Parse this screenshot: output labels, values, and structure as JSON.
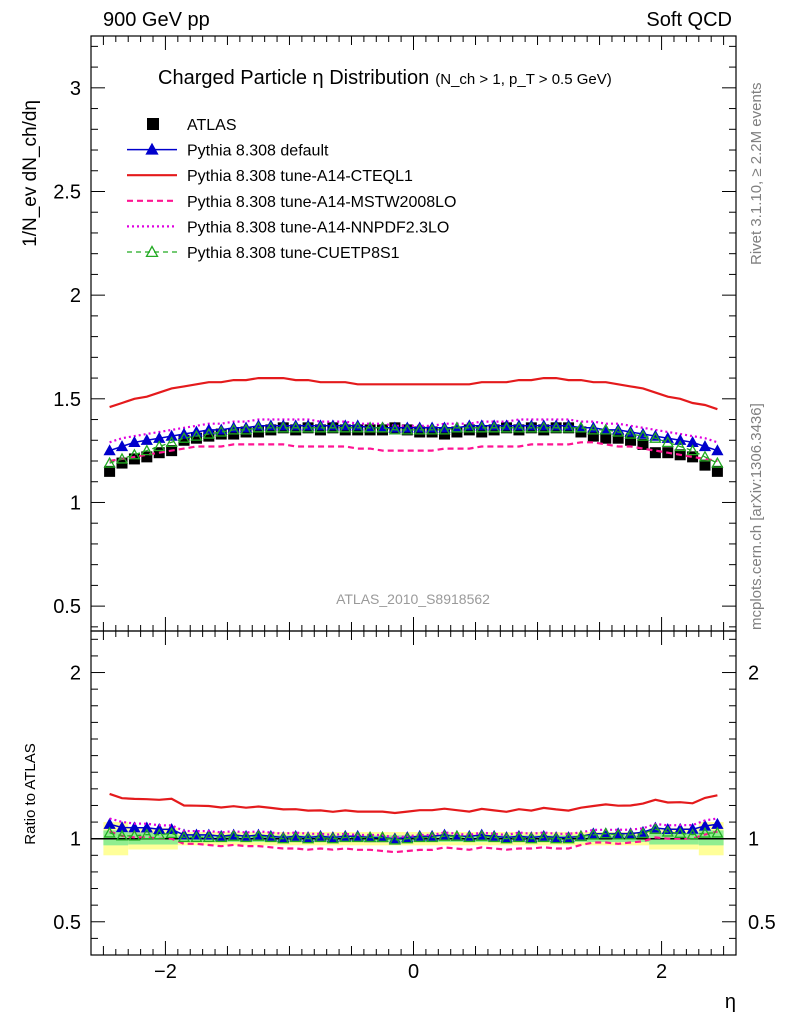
{
  "header": {
    "left": "900 GeV pp",
    "right": "Soft QCD"
  },
  "side": {
    "rivet": "Rivet 3.1.10, ≥ 2.2M events",
    "mcplots": "mcplots.cern.ch [arXiv:1306.3436]"
  },
  "colors": {
    "atlas": "#000000",
    "default": "#0000cc",
    "cteql1": "#e41a1c",
    "mstw": "#ff1493",
    "nnpdf": "#e000e0",
    "cuetp8s1": "#22aa22",
    "band_inner": "#90ee90",
    "band_outer": "#ffff99"
  },
  "chart_data": [
    {
      "type": "line",
      "title": "Charged Particle η Distribution",
      "title_sub": "(N_ch > 1, p_T > 0.5 GeV)",
      "ylabel": "1/N_ev dN_ch/dη",
      "xlabel": "",
      "xlim": [
        -2.6,
        2.6
      ],
      "ylim": [
        0.38,
        3.25
      ],
      "yticks": [
        0.5,
        1,
        1.5,
        2,
        2.5,
        3
      ],
      "ytick_labels": [
        "0.5",
        "1",
        "1.5",
        "2",
        "2.5",
        "3"
      ],
      "analysis_label": "ATLAS_2010_S8918562",
      "legend": "top-left",
      "x": [
        -2.45,
        -2.35,
        -2.25,
        -2.15,
        -2.05,
        -1.95,
        -1.85,
        -1.75,
        -1.65,
        -1.55,
        -1.45,
        -1.35,
        -1.25,
        -1.15,
        -1.05,
        -0.95,
        -0.85,
        -0.75,
        -0.65,
        -0.55,
        -0.45,
        -0.35,
        -0.25,
        -0.15,
        -0.05,
        0.05,
        0.15,
        0.25,
        0.35,
        0.45,
        0.55,
        0.65,
        0.75,
        0.85,
        0.95,
        1.05,
        1.15,
        1.25,
        1.35,
        1.45,
        1.55,
        1.65,
        1.75,
        1.85,
        1.95,
        2.05,
        2.15,
        2.25,
        2.35,
        2.45
      ],
      "series": [
        {
          "name": "ATLAS",
          "key": "atlas",
          "style": "square",
          "values": [
            1.15,
            1.19,
            1.21,
            1.22,
            1.24,
            1.25,
            1.3,
            1.31,
            1.32,
            1.33,
            1.33,
            1.34,
            1.34,
            1.35,
            1.36,
            1.35,
            1.36,
            1.35,
            1.36,
            1.35,
            1.35,
            1.35,
            1.35,
            1.36,
            1.35,
            1.34,
            1.34,
            1.33,
            1.34,
            1.35,
            1.34,
            1.35,
            1.36,
            1.35,
            1.36,
            1.35,
            1.36,
            1.36,
            1.34,
            1.32,
            1.31,
            1.31,
            1.3,
            1.28,
            1.24,
            1.24,
            1.23,
            1.22,
            1.18,
            1.15
          ]
        },
        {
          "name": "Pythia 8.308 default",
          "key": "default",
          "style": "solid-triangle",
          "values": [
            1.25,
            1.27,
            1.29,
            1.3,
            1.31,
            1.32,
            1.33,
            1.34,
            1.35,
            1.35,
            1.36,
            1.36,
            1.37,
            1.37,
            1.37,
            1.37,
            1.37,
            1.37,
            1.37,
            1.37,
            1.37,
            1.36,
            1.36,
            1.36,
            1.36,
            1.36,
            1.36,
            1.36,
            1.36,
            1.37,
            1.37,
            1.37,
            1.37,
            1.37,
            1.37,
            1.37,
            1.37,
            1.37,
            1.36,
            1.36,
            1.35,
            1.35,
            1.34,
            1.33,
            1.32,
            1.31,
            1.3,
            1.29,
            1.27,
            1.25
          ]
        },
        {
          "name": "Pythia 8.308 tune-A14-CTEQL1",
          "key": "cteql1",
          "style": "solid",
          "values": [
            1.46,
            1.48,
            1.5,
            1.51,
            1.53,
            1.55,
            1.56,
            1.57,
            1.58,
            1.58,
            1.59,
            1.59,
            1.6,
            1.6,
            1.6,
            1.59,
            1.59,
            1.58,
            1.58,
            1.58,
            1.57,
            1.57,
            1.57,
            1.57,
            1.57,
            1.57,
            1.57,
            1.57,
            1.57,
            1.57,
            1.58,
            1.58,
            1.58,
            1.59,
            1.59,
            1.6,
            1.6,
            1.59,
            1.59,
            1.58,
            1.58,
            1.57,
            1.56,
            1.55,
            1.53,
            1.51,
            1.5,
            1.48,
            1.47,
            1.45
          ]
        },
        {
          "name": "Pythia 8.308 tune-A14-MSTW2008LO",
          "key": "mstw",
          "style": "dashed",
          "values": [
            1.2,
            1.21,
            1.22,
            1.23,
            1.24,
            1.25,
            1.26,
            1.27,
            1.27,
            1.27,
            1.28,
            1.28,
            1.28,
            1.28,
            1.28,
            1.27,
            1.27,
            1.27,
            1.27,
            1.27,
            1.26,
            1.26,
            1.25,
            1.25,
            1.25,
            1.25,
            1.25,
            1.26,
            1.26,
            1.26,
            1.27,
            1.27,
            1.27,
            1.27,
            1.28,
            1.28,
            1.28,
            1.28,
            1.29,
            1.29,
            1.28,
            1.27,
            1.27,
            1.26,
            1.25,
            1.24,
            1.23,
            1.22,
            1.21,
            1.2
          ]
        },
        {
          "name": "Pythia 8.308 tune-A14-NNPDF2.3LO",
          "key": "nnpdf",
          "style": "dotted",
          "values": [
            1.29,
            1.31,
            1.32,
            1.33,
            1.34,
            1.35,
            1.36,
            1.37,
            1.38,
            1.38,
            1.39,
            1.39,
            1.4,
            1.4,
            1.4,
            1.4,
            1.4,
            1.39,
            1.39,
            1.39,
            1.38,
            1.38,
            1.38,
            1.37,
            1.37,
            1.37,
            1.37,
            1.38,
            1.38,
            1.38,
            1.39,
            1.39,
            1.39,
            1.4,
            1.4,
            1.4,
            1.4,
            1.4,
            1.39,
            1.39,
            1.38,
            1.38,
            1.37,
            1.36,
            1.35,
            1.34,
            1.33,
            1.32,
            1.31,
            1.29
          ]
        },
        {
          "name": "Pythia 8.308 tune-CUETP8S1",
          "key": "cuetp8s1",
          "style": "dashed-open-triangle",
          "values": [
            1.19,
            1.21,
            1.23,
            1.25,
            1.27,
            1.29,
            1.31,
            1.32,
            1.33,
            1.34,
            1.35,
            1.35,
            1.36,
            1.36,
            1.36,
            1.36,
            1.36,
            1.36,
            1.36,
            1.36,
            1.36,
            1.36,
            1.36,
            1.35,
            1.35,
            1.35,
            1.35,
            1.35,
            1.36,
            1.36,
            1.36,
            1.36,
            1.36,
            1.36,
            1.36,
            1.36,
            1.36,
            1.36,
            1.36,
            1.35,
            1.35,
            1.34,
            1.33,
            1.32,
            1.31,
            1.29,
            1.27,
            1.25,
            1.22,
            1.19
          ]
        }
      ]
    },
    {
      "type": "line",
      "title": "",
      "ylabel": "Ratio to ATLAS",
      "xlabel": "η",
      "xlim": [
        -2.6,
        2.6
      ],
      "ylim": [
        0.3,
        2.25
      ],
      "yticks": [
        0.5,
        1,
        2
      ],
      "ytick_labels": [
        "0.5",
        "1",
        "2"
      ],
      "xticks": [
        -2,
        0,
        2
      ],
      "xtick_labels": [
        "−2",
        "0",
        "2"
      ],
      "band_inner": [
        {
          "x": [
            -2.5,
            -2.3
          ],
          "y": [
            0.96,
            1.05
          ]
        },
        {
          "x": [
            -2.3,
            -1.9
          ],
          "y": [
            0.965,
            1.035
          ]
        },
        {
          "x": [
            -1.9,
            1.9
          ],
          "y": [
            0.98,
            1.02
          ]
        },
        {
          "x": [
            1.9,
            2.3
          ],
          "y": [
            0.965,
            1.035
          ]
        },
        {
          "x": [
            2.3,
            2.5
          ],
          "y": [
            0.96,
            1.05
          ]
        }
      ],
      "band_outer": [
        {
          "x": [
            -2.5,
            -2.3
          ],
          "y": [
            0.9,
            1.1
          ]
        },
        {
          "x": [
            -2.3,
            -1.9
          ],
          "y": [
            0.935,
            1.065
          ]
        },
        {
          "x": [
            -1.9,
            1.9
          ],
          "y": [
            0.96,
            1.04
          ]
        },
        {
          "x": [
            1.9,
            2.3
          ],
          "y": [
            0.935,
            1.065
          ]
        },
        {
          "x": [
            2.3,
            2.5
          ],
          "y": [
            0.9,
            1.1
          ]
        }
      ],
      "reference_line": 1,
      "series": [
        {
          "name": "Pythia 8.308 default",
          "key": "default",
          "style": "solid-triangle",
          "values": "ratio"
        },
        {
          "name": "Pythia 8.308 tune-A14-CTEQL1",
          "key": "cteql1",
          "style": "solid",
          "values": "ratio"
        },
        {
          "name": "Pythia 8.308 tune-A14-MSTW2008LO",
          "key": "mstw",
          "style": "dashed",
          "values": "ratio"
        },
        {
          "name": "Pythia 8.308 tune-A14-NNPDF2.3LO",
          "key": "nnpdf",
          "style": "dotted",
          "values": "ratio"
        },
        {
          "name": "Pythia 8.308 tune-CUETP8S1",
          "key": "cuetp8s1",
          "style": "dashed-open-triangle",
          "values": "ratio"
        }
      ]
    }
  ]
}
